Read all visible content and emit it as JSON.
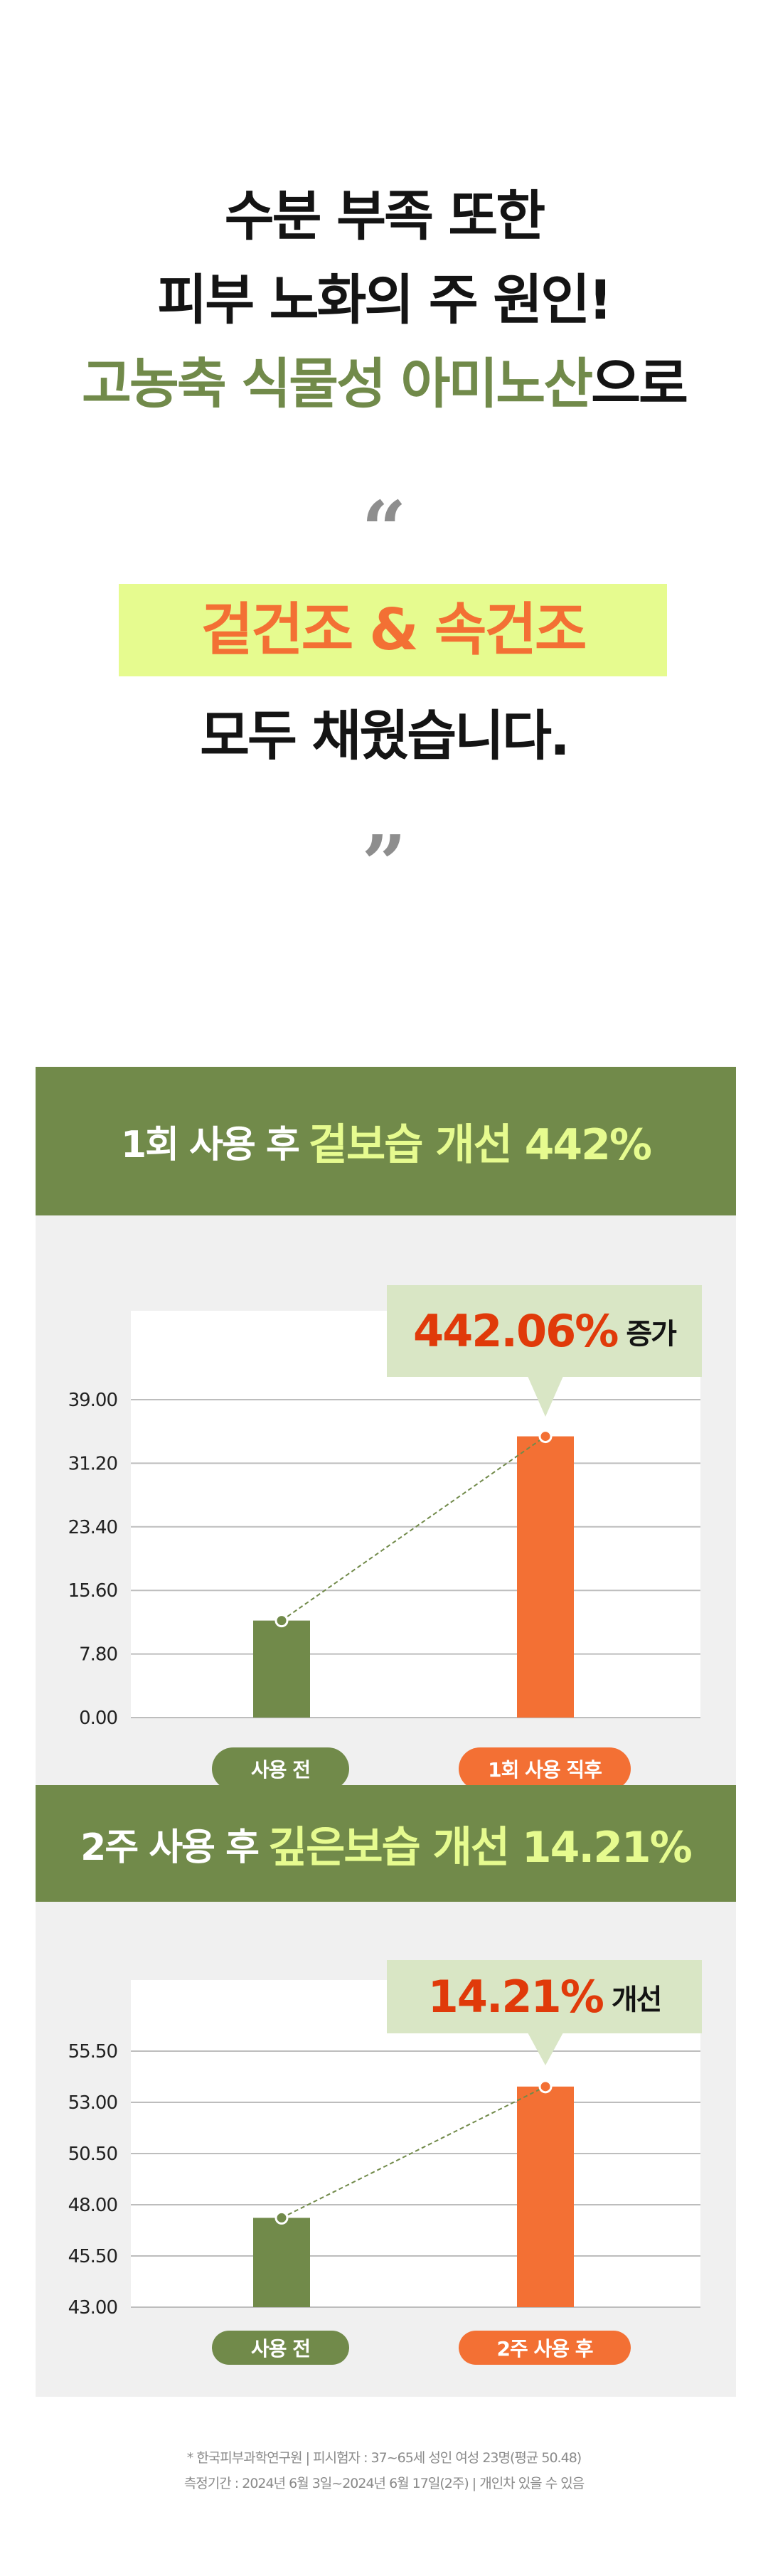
{
  "headline": {
    "line1": "수분 부족 또한",
    "line2": "피부 노화의 주 원인!",
    "line3_accent": "고농축 식물성 아미노산",
    "line3_rest": "으로",
    "open_quote": "“",
    "highlight": "겉건조 & 속건조",
    "line5": "모두 채웠습니다.",
    "close_quote": "”"
  },
  "colors": {
    "brand_green": "#718a4a",
    "accent_lime": "#e6fb8f",
    "orange": "#f37034",
    "callout_bg": "#d9e6c5",
    "callout_red": "#e03a0a"
  },
  "chart_data": [
    {
      "type": "bar",
      "title_prefix": "1회 사용 후",
      "title_accent": "겉보습 개선 442%",
      "categories": [
        "사용 전",
        "1회 사용 직후"
      ],
      "values": [
        11.9,
        34.5
      ],
      "ylim": [
        0,
        39
      ],
      "yticks": [
        "39.00",
        "31.20",
        "23.40",
        "15.60",
        "7.80",
        "0.00"
      ],
      "tick_values": [
        39,
        31.2,
        23.4,
        15.6,
        7.8,
        0
      ],
      "grid": true,
      "trend_line": "dashed",
      "callout": {
        "value": "442.06%",
        "suffix": "증가"
      },
      "bar_colors": [
        "#718a4a",
        "#f37034"
      ]
    },
    {
      "type": "bar",
      "title_prefix": "2주 사용 후",
      "title_accent": "깊은보습 개선 14.21%",
      "categories": [
        "사용 전",
        "2주 사용 후"
      ],
      "values": [
        47.36,
        53.77
      ],
      "ylim": [
        43,
        55.5
      ],
      "yticks": [
        "55.50",
        "53.00",
        "50.50",
        "48.00",
        "45.50",
        "43.00"
      ],
      "tick_values": [
        55.5,
        53,
        50.5,
        48,
        45.5,
        43
      ],
      "grid": true,
      "trend_line": "dashed",
      "callout": {
        "value": "14.21%",
        "suffix": "개선"
      },
      "bar_colors": [
        "#718a4a",
        "#f37034"
      ]
    }
  ],
  "footnote": {
    "line1": "*  한국피부과학연구원  |  피시험자 : 37~65세 성인 여성 23명(평균 50.48)",
    "line2": "측정기간 : 2024년 6월 3일~2024년 6월 17일(2주)  |  개인차 있을 수 있음"
  }
}
